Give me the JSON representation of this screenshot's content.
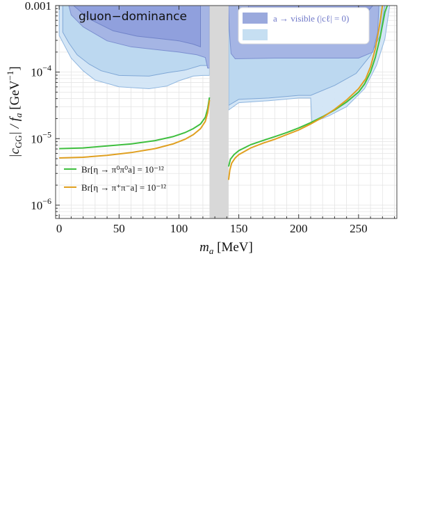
{
  "chart_data": {
    "type": "line",
    "title": "",
    "inner_label": "gluon−dominance",
    "xlabel": {
      "var": "m",
      "sub": "a",
      "unit": " [MeV]"
    },
    "ylabel": {
      "pre": "|c",
      "sub": "GG",
      "mid": "| / f",
      "sub2": "a",
      "unit": "  [GeV",
      "exp": "−1",
      "close": "]"
    },
    "xlim": [
      -3,
      282
    ],
    "ylim_log10": [
      -6.2,
      -3.0
    ],
    "x_ticks": [
      "0",
      "50",
      "100",
      "150",
      "200",
      "250"
    ],
    "x_tick_values": [
      0,
      50,
      100,
      150,
      200,
      250
    ],
    "y_ticks": [
      {
        "value": -6,
        "base": "10",
        "exp": "−6"
      },
      {
        "value": -5,
        "base": "10",
        "exp": "−5"
      },
      {
        "value": -4,
        "base": "10",
        "exp": "−4"
      },
      {
        "value": -3,
        "base": "0.001",
        "exp": ""
      }
    ],
    "grid": true,
    "excluded_band": {
      "x": [
        125.5,
        141.5
      ],
      "color": "#d8d8d8"
    },
    "legend_top": {
      "placement": "top-right",
      "entries": [
        {
          "name": "a → visible (|cℓ| = 0)",
          "color": "#9aa9dd"
        },
        {
          "name": "",
          "color": "#c6dff2"
        }
      ]
    },
    "legend_bottom": {
      "placement": "bottom-left",
      "entries": [
        {
          "name": "Br[η → π⁰π⁰a] = 10⁻¹²",
          "color": "#3fbf3f"
        },
        {
          "name": "Br[η → π⁺π⁻a] = 10⁻¹²",
          "color": "#e0a020"
        }
      ]
    },
    "regions": [
      {
        "name": "light-outer",
        "fill": "#d2e5f5",
        "stroke": "#8fb6df",
        "left": [
          [
            0,
            -3.0
          ],
          [
            0,
            -3.45
          ],
          [
            5,
            -3.62
          ],
          [
            10,
            -3.79
          ],
          [
            20,
            -3.98
          ],
          [
            30,
            -4.12
          ],
          [
            50,
            -4.22
          ],
          [
            75,
            -4.25
          ],
          [
            90,
            -4.21
          ],
          [
            100,
            -4.13
          ],
          [
            112,
            -4.06
          ],
          [
            120,
            -4.05
          ],
          [
            125.5,
            -4.05
          ],
          [
            125.5,
            -3.0
          ]
        ],
        "right": [
          [
            141.5,
            -3.0
          ],
          [
            141.5,
            -4.57
          ],
          [
            150,
            -4.46
          ],
          [
            175,
            -4.43
          ],
          [
            200,
            -4.39
          ],
          [
            210,
            -4.39
          ],
          [
            211,
            -4.76
          ],
          [
            225,
            -4.66
          ],
          [
            240,
            -4.52
          ],
          [
            255,
            -4.25
          ],
          [
            265,
            -3.9
          ],
          [
            272,
            -3.5
          ],
          [
            276,
            -3.0
          ]
        ]
      },
      {
        "name": "light-inner",
        "fill": "#bad7ef",
        "stroke": "#7fa7d6",
        "left": [
          [
            3,
            -3.0
          ],
          [
            3,
            -3.4
          ],
          [
            8,
            -3.56
          ],
          [
            15,
            -3.74
          ],
          [
            25,
            -3.88
          ],
          [
            35,
            -3.98
          ],
          [
            50,
            -4.05
          ],
          [
            75,
            -4.06
          ],
          [
            90,
            -4.01
          ],
          [
            105,
            -3.97
          ],
          [
            118,
            -3.9
          ],
          [
            125.5,
            -3.9
          ],
          [
            125.5,
            -3.0
          ]
        ],
        "right": [
          [
            141.5,
            -3.0
          ],
          [
            141.5,
            -4.5
          ],
          [
            150,
            -4.41
          ],
          [
            175,
            -4.39
          ],
          [
            200,
            -4.35
          ],
          [
            210,
            -4.35
          ],
          [
            210,
            -4.35
          ],
          [
            230,
            -4.2
          ],
          [
            248,
            -4.02
          ],
          [
            260,
            -3.75
          ],
          [
            268,
            -3.45
          ],
          [
            272,
            -3.0
          ]
        ]
      },
      {
        "name": "blue-visible",
        "fill": "#a3b3e3",
        "stroke": "#7b8fd0",
        "left": [
          [
            8,
            -3.0
          ],
          [
            10,
            -3.14
          ],
          [
            20,
            -3.32
          ],
          [
            40,
            -3.53
          ],
          [
            60,
            -3.62
          ],
          [
            80,
            -3.66
          ],
          [
            100,
            -3.7
          ],
          [
            115,
            -3.74
          ],
          [
            122,
            -3.78
          ],
          [
            124,
            -3.94
          ],
          [
            125.5,
            -3.94
          ],
          [
            125.5,
            -3.0
          ]
        ],
        "right": [
          [
            141.5,
            -3.0
          ],
          [
            141.5,
            -3.05
          ],
          [
            142,
            -3.35
          ],
          [
            143.5,
            -3.72
          ],
          [
            147,
            -3.8
          ],
          [
            180,
            -3.79
          ],
          [
            220,
            -3.79
          ],
          [
            250,
            -3.79
          ],
          [
            262,
            -3.7
          ],
          [
            266,
            -3.4
          ],
          [
            267,
            -3.0
          ]
        ]
      },
      {
        "name": "blue-core",
        "fill": "#8e9fdc",
        "stroke": "#7083c8",
        "left": [
          [
            12,
            -3.0
          ],
          [
            25,
            -3.2
          ],
          [
            45,
            -3.38
          ],
          [
            65,
            -3.46
          ],
          [
            85,
            -3.5
          ],
          [
            100,
            -3.53
          ],
          [
            112,
            -3.58
          ],
          [
            118,
            -3.62
          ],
          [
            118,
            -3.0
          ]
        ],
        "right": [
          [
            158,
            -3.0
          ],
          [
            158,
            -3.05
          ],
          [
            170,
            -3.08
          ],
          [
            220,
            -3.08
          ],
          [
            258,
            -3.08
          ],
          [
            262,
            -3.0
          ]
        ]
      }
    ],
    "series": [
      {
        "name": "Br[η → π⁰π⁰a] = 10⁻¹²",
        "color": "#3fbf3f",
        "segments": [
          {
            "x": [
              0,
              20,
              40,
              60,
              80,
              95,
              105,
              112,
              118,
              122,
              124,
              125.5
            ],
            "y": [
              -5.15,
              -5.14,
              -5.11,
              -5.08,
              -5.03,
              -4.97,
              -4.91,
              -4.85,
              -4.78,
              -4.68,
              -4.55,
              -4.38
            ]
          },
          {
            "x": [
              141.5,
              143,
              146,
              150,
              160,
              170,
              180,
              190,
              200,
              210,
              220,
              230,
              240,
              250,
              255,
              260,
              264,
              268,
              272,
              274
            ],
            "y": [
              -5.42,
              -5.31,
              -5.24,
              -5.18,
              -5.09,
              -5.03,
              -4.97,
              -4.91,
              -4.84,
              -4.76,
              -4.67,
              -4.57,
              -4.45,
              -4.3,
              -4.18,
              -4.0,
              -3.78,
              -3.48,
              -3.1,
              -3.0
            ]
          }
        ]
      },
      {
        "name": "Br[η → π⁺π⁻a] = 10⁻¹²",
        "color": "#e0a020",
        "segments": [
          {
            "x": [
              0,
              20,
              40,
              60,
              80,
              95,
              105,
              112,
              118,
              122,
              124,
              125.5
            ],
            "y": [
              -5.29,
              -5.28,
              -5.25,
              -5.21,
              -5.15,
              -5.08,
              -5.01,
              -4.94,
              -4.85,
              -4.74,
              -4.61,
              -4.42
            ]
          },
          {
            "x": [
              141.5,
              142.5,
              144,
              147,
              150,
              160,
              170,
              180,
              190,
              200,
              210,
              220,
              230,
              240,
              250,
              256,
              260,
              264,
              268,
              270
            ],
            "y": [
              -5.62,
              -5.47,
              -5.37,
              -5.29,
              -5.24,
              -5.14,
              -5.07,
              -5.01,
              -4.94,
              -4.87,
              -4.78,
              -4.68,
              -4.56,
              -4.42,
              -4.25,
              -4.1,
              -3.92,
              -3.65,
              -3.25,
              -3.0
            ]
          }
        ]
      }
    ]
  }
}
